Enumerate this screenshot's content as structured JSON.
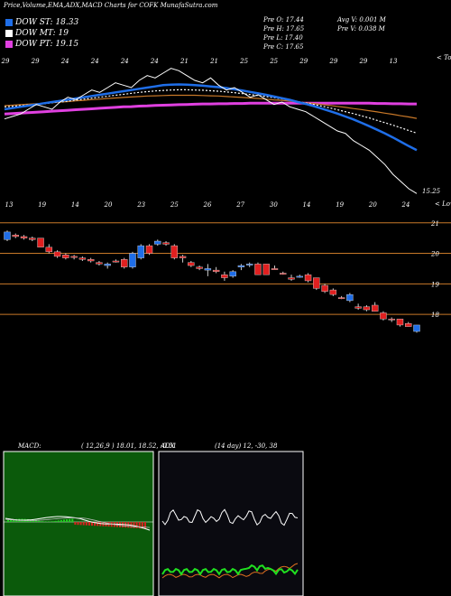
{
  "header": {
    "title": "Price,Volume,EMA,ADX,MACD Charts for COFK MunafaSutra.com"
  },
  "legend": [
    {
      "label": "DOW ST: 18.33",
      "color": "#1f6ee8"
    },
    {
      "label": "DOW MT: 19",
      "color": "#ffffff"
    },
    {
      "label": "DOW PT: 19.15",
      "color": "#e040e0"
    }
  ],
  "info": {
    "pre_o": "Pre   O: 17.44",
    "pre_h": "Pre   H: 17.65",
    "pre_l": "Pre   L: 17.40",
    "pre_c": "Pre   C: 17.65",
    "avg_v": "Avg V: 0.001 M",
    "pre_v": "Pre   V: 0.038   M"
  },
  "chart_data": [
    {
      "type": "line",
      "name": "ema-panel",
      "series": [
        {
          "name": "Price",
          "color": "#ffffff",
          "values": [
            18.5,
            18.6,
            18.7,
            18.9,
            19.1,
            19.0,
            18.9,
            19.2,
            19.4,
            19.3,
            19.5,
            19.7,
            19.6,
            19.8,
            20.0,
            19.9,
            19.8,
            20.1,
            20.3,
            20.2,
            20.4,
            20.6,
            20.5,
            20.3,
            20.1,
            20.0,
            20.2,
            19.9,
            19.7,
            19.8,
            19.6,
            19.4,
            19.5,
            19.3,
            19.1,
            19.2,
            19.0,
            18.9,
            18.8,
            18.6,
            18.4,
            18.2,
            18.0,
            17.9,
            17.6,
            17.4,
            17.2,
            16.9,
            16.6,
            16.2,
            15.9,
            15.6,
            15.4
          ]
        },
        {
          "name": "EMA blue",
          "color": "#1f6ee8",
          "values": [
            18.9,
            18.95,
            19.0,
            19.05,
            19.1,
            19.15,
            19.2,
            19.25,
            19.3,
            19.35,
            19.4,
            19.45,
            19.5,
            19.55,
            19.6,
            19.65,
            19.7,
            19.75,
            19.8,
            19.85,
            19.9,
            19.92,
            19.93,
            19.92,
            19.9,
            19.88,
            19.85,
            19.82,
            19.78,
            19.73,
            19.68,
            19.62,
            19.56,
            19.5,
            19.43,
            19.36,
            19.29,
            19.2,
            19.12,
            19.03,
            18.93,
            18.83,
            18.72,
            18.6,
            18.48,
            18.34,
            18.2,
            18.05,
            17.9,
            17.73,
            17.55,
            17.37,
            17.2
          ]
        },
        {
          "name": "EMA white",
          "color": "#ffffff",
          "values": [
            19.0,
            19.02,
            19.05,
            19.08,
            19.1,
            19.13,
            19.17,
            19.2,
            19.24,
            19.28,
            19.32,
            19.36,
            19.4,
            19.44,
            19.48,
            19.52,
            19.56,
            19.6,
            19.63,
            19.66,
            19.68,
            19.7,
            19.71,
            19.71,
            19.7,
            19.69,
            19.67,
            19.65,
            19.62,
            19.59,
            19.55,
            19.51,
            19.47,
            19.43,
            19.38,
            19.33,
            19.28,
            19.22,
            19.16,
            19.1,
            19.03,
            18.96,
            18.88,
            18.8,
            18.72,
            18.63,
            18.54,
            18.44,
            18.34,
            18.24,
            18.13,
            18.02,
            17.91
          ]
        },
        {
          "name": "EMA orange",
          "color": "#c87828",
          "values": [
            19.05,
            19.07,
            19.09,
            19.11,
            19.13,
            19.15,
            19.17,
            19.2,
            19.22,
            19.25,
            19.27,
            19.3,
            19.32,
            19.35,
            19.37,
            19.39,
            19.41,
            19.43,
            19.45,
            19.46,
            19.47,
            19.48,
            19.48,
            19.48,
            19.48,
            19.47,
            19.46,
            19.45,
            19.43,
            19.41,
            19.39,
            19.37,
            19.35,
            19.32,
            19.29,
            19.27,
            19.24,
            19.2,
            19.17,
            19.14,
            19.1,
            19.06,
            19.02,
            18.98,
            18.93,
            18.89,
            18.84,
            18.79,
            18.74,
            18.69,
            18.63,
            18.58,
            18.52
          ]
        },
        {
          "name": "EMA magenta",
          "color": "#e040e0",
          "values": [
            18.7,
            18.72,
            18.74,
            18.76,
            18.78,
            18.8,
            18.82,
            18.84,
            18.86,
            18.88,
            18.9,
            18.92,
            18.94,
            18.96,
            18.98,
            19.0,
            19.01,
            19.03,
            19.04,
            19.06,
            19.07,
            19.08,
            19.09,
            19.1,
            19.11,
            19.12,
            19.12,
            19.13,
            19.13,
            19.14,
            19.14,
            19.15,
            19.15,
            19.15,
            19.15,
            19.15,
            19.15,
            19.15,
            19.15,
            19.15,
            19.15,
            19.15,
            19.15,
            19.15,
            19.15,
            19.15,
            19.15,
            19.14,
            19.14,
            19.13,
            19.13,
            19.12,
            19.12
          ]
        }
      ],
      "last_label": "15.25",
      "top_label": "< Tops",
      "bottom_label": "< Lows",
      "date_labels": [
        "29",
        "29",
        "24",
        "24",
        "24",
        "24",
        "21",
        "21",
        "25",
        "25",
        "29",
        "29",
        "29",
        "13",
        "13",
        "19",
        "14",
        "20",
        "23",
        "25",
        "26",
        "27",
        "30",
        "14",
        "19",
        "20",
        "24"
      ]
    },
    {
      "type": "candlestick",
      "name": "price-panel",
      "ylim": [
        17.5,
        21.2
      ],
      "y_ticks": [
        21,
        20,
        19,
        18
      ],
      "candles": [
        {
          "o": 20.7,
          "h": 20.75,
          "l": 20.4,
          "c": 20.45,
          "up": true
        },
        {
          "o": 20.6,
          "h": 20.65,
          "l": 20.5,
          "c": 20.55,
          "up": false
        },
        {
          "o": 20.55,
          "h": 20.6,
          "l": 20.45,
          "c": 20.5,
          "up": false
        },
        {
          "o": 20.5,
          "h": 20.55,
          "l": 20.4,
          "c": 20.45,
          "up": false
        },
        {
          "o": 20.5,
          "h": 20.5,
          "l": 20.2,
          "c": 20.2,
          "up": false
        },
        {
          "o": 20.2,
          "h": 20.3,
          "l": 20.0,
          "c": 20.05,
          "up": false
        },
        {
          "o": 20.05,
          "h": 20.1,
          "l": 19.85,
          "c": 19.9,
          "up": false
        },
        {
          "o": 19.95,
          "h": 20.0,
          "l": 19.8,
          "c": 19.85,
          "up": false
        },
        {
          "o": 19.9,
          "h": 19.95,
          "l": 19.8,
          "c": 19.9,
          "up": false
        },
        {
          "o": 19.85,
          "h": 19.9,
          "l": 19.75,
          "c": 19.8,
          "up": false
        },
        {
          "o": 19.8,
          "h": 19.85,
          "l": 19.7,
          "c": 19.75,
          "up": false
        },
        {
          "o": 19.7,
          "h": 19.75,
          "l": 19.6,
          "c": 19.65,
          "up": false
        },
        {
          "o": 19.6,
          "h": 19.7,
          "l": 19.5,
          "c": 19.65,
          "up": true
        },
        {
          "o": 19.75,
          "h": 19.8,
          "l": 19.7,
          "c": 19.75,
          "up": false
        },
        {
          "o": 19.8,
          "h": 19.85,
          "l": 19.5,
          "c": 19.55,
          "up": false
        },
        {
          "o": 19.55,
          "h": 20.05,
          "l": 19.5,
          "c": 20.0,
          "up": true
        },
        {
          "o": 19.85,
          "h": 20.3,
          "l": 19.8,
          "c": 20.25,
          "up": true
        },
        {
          "o": 20.0,
          "h": 20.3,
          "l": 19.95,
          "c": 20.25,
          "up": false
        },
        {
          "o": 20.3,
          "h": 20.45,
          "l": 20.25,
          "c": 20.4,
          "up": true
        },
        {
          "o": 20.35,
          "h": 20.4,
          "l": 20.25,
          "c": 20.3,
          "up": false
        },
        {
          "o": 20.25,
          "h": 20.3,
          "l": 19.8,
          "c": 19.85,
          "up": false
        },
        {
          "o": 19.85,
          "h": 19.95,
          "l": 19.7,
          "c": 19.9,
          "up": false
        },
        {
          "o": 19.7,
          "h": 19.75,
          "l": 19.55,
          "c": 19.6,
          "up": false
        },
        {
          "o": 19.55,
          "h": 19.6,
          "l": 19.45,
          "c": 19.5,
          "up": false
        },
        {
          "o": 19.5,
          "h": 19.65,
          "l": 19.25,
          "c": 19.45,
          "up": true
        },
        {
          "o": 19.45,
          "h": 19.55,
          "l": 19.35,
          "c": 19.4,
          "up": false
        },
        {
          "o": 19.3,
          "h": 19.4,
          "l": 19.1,
          "c": 19.2,
          "up": false
        },
        {
          "o": 19.25,
          "h": 19.45,
          "l": 19.2,
          "c": 19.4,
          "up": true
        },
        {
          "o": 19.55,
          "h": 19.65,
          "l": 19.45,
          "c": 19.6,
          "up": true
        },
        {
          "o": 19.65,
          "h": 19.7,
          "l": 19.55,
          "c": 19.65,
          "up": true
        },
        {
          "o": 19.65,
          "h": 19.7,
          "l": 19.3,
          "c": 19.3,
          "up": false
        },
        {
          "o": 19.65,
          "h": 19.65,
          "l": 19.3,
          "c": 19.3,
          "up": false
        },
        {
          "o": 19.5,
          "h": 19.6,
          "l": 19.5,
          "c": 19.5,
          "up": false
        },
        {
          "o": 19.35,
          "h": 19.4,
          "l": 19.3,
          "c": 19.35,
          "up": false
        },
        {
          "o": 19.2,
          "h": 19.3,
          "l": 19.1,
          "c": 19.15,
          "up": false
        },
        {
          "o": 19.25,
          "h": 19.3,
          "l": 19.2,
          "c": 19.25,
          "up": true
        },
        {
          "o": 19.3,
          "h": 19.35,
          "l": 19.05,
          "c": 19.1,
          "up": false
        },
        {
          "o": 19.2,
          "h": 19.2,
          "l": 18.8,
          "c": 18.85,
          "up": false
        },
        {
          "o": 18.95,
          "h": 19.0,
          "l": 18.7,
          "c": 18.75,
          "up": false
        },
        {
          "o": 18.8,
          "h": 18.85,
          "l": 18.6,
          "c": 18.65,
          "up": false
        },
        {
          "o": 18.55,
          "h": 18.6,
          "l": 18.5,
          "c": 18.55,
          "up": false
        },
        {
          "o": 18.45,
          "h": 18.7,
          "l": 18.4,
          "c": 18.65,
          "up": true
        },
        {
          "o": 18.25,
          "h": 18.35,
          "l": 18.15,
          "c": 18.2,
          "up": false
        },
        {
          "o": 18.25,
          "h": 18.3,
          "l": 18.1,
          "c": 18.15,
          "up": false
        },
        {
          "o": 18.3,
          "h": 18.4,
          "l": 18.1,
          "c": 18.1,
          "up": false
        },
        {
          "o": 18.05,
          "h": 18.1,
          "l": 17.8,
          "c": 17.85,
          "up": false
        },
        {
          "o": 17.85,
          "h": 17.9,
          "l": 17.75,
          "c": 17.85,
          "up": false
        },
        {
          "o": 17.85,
          "h": 17.85,
          "l": 17.6,
          "c": 17.65,
          "up": false
        },
        {
          "o": 17.7,
          "h": 17.75,
          "l": 17.6,
          "c": 17.6,
          "up": false
        },
        {
          "o": 17.44,
          "h": 17.65,
          "l": 17.4,
          "c": 17.65,
          "up": true
        }
      ]
    },
    {
      "type": "line",
      "name": "macd-panel",
      "label": "MACD:",
      "params": "( 12,26,9 ) 18.01,  18.52,  -0.51",
      "bg": "#0b5a0b"
    },
    {
      "type": "line",
      "name": "adx-panel",
      "label": "ADX",
      "params": "(14  day) 12,  -30,  38",
      "bg": "#0a0a10"
    }
  ]
}
